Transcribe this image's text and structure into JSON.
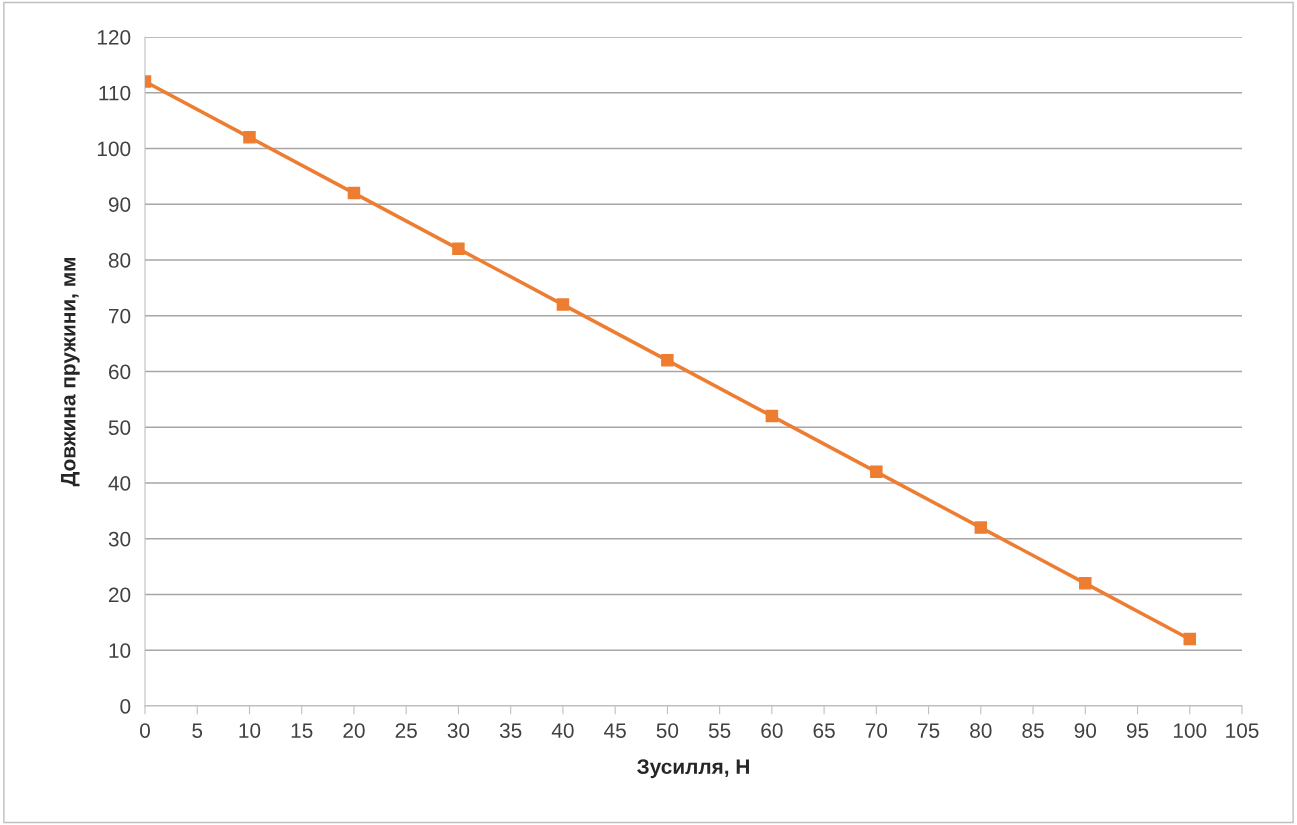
{
  "chart_data": {
    "type": "line",
    "xlabel": "Зусилля, Н",
    "ylabel": "Довжина пружини, мм",
    "x": [
      0,
      10,
      20,
      30,
      40,
      50,
      60,
      70,
      80,
      90,
      100
    ],
    "series": [
      {
        "color": "#ed7d31",
        "values": [
          112,
          102,
          92,
          82,
          72,
          62,
          52,
          42,
          32,
          22,
          12
        ]
      }
    ],
    "xlim": [
      0,
      105
    ],
    "xticks": [
      0,
      5,
      10,
      15,
      20,
      25,
      30,
      35,
      40,
      45,
      50,
      55,
      60,
      65,
      70,
      75,
      80,
      85,
      90,
      95,
      100,
      105
    ],
    "ylim": [
      0,
      120
    ],
    "yticks": [
      0,
      10,
      20,
      30,
      40,
      50,
      60,
      70,
      80,
      90,
      100,
      110,
      120
    ],
    "grid": "y",
    "marker": "square",
    "line_style": "solid"
  }
}
